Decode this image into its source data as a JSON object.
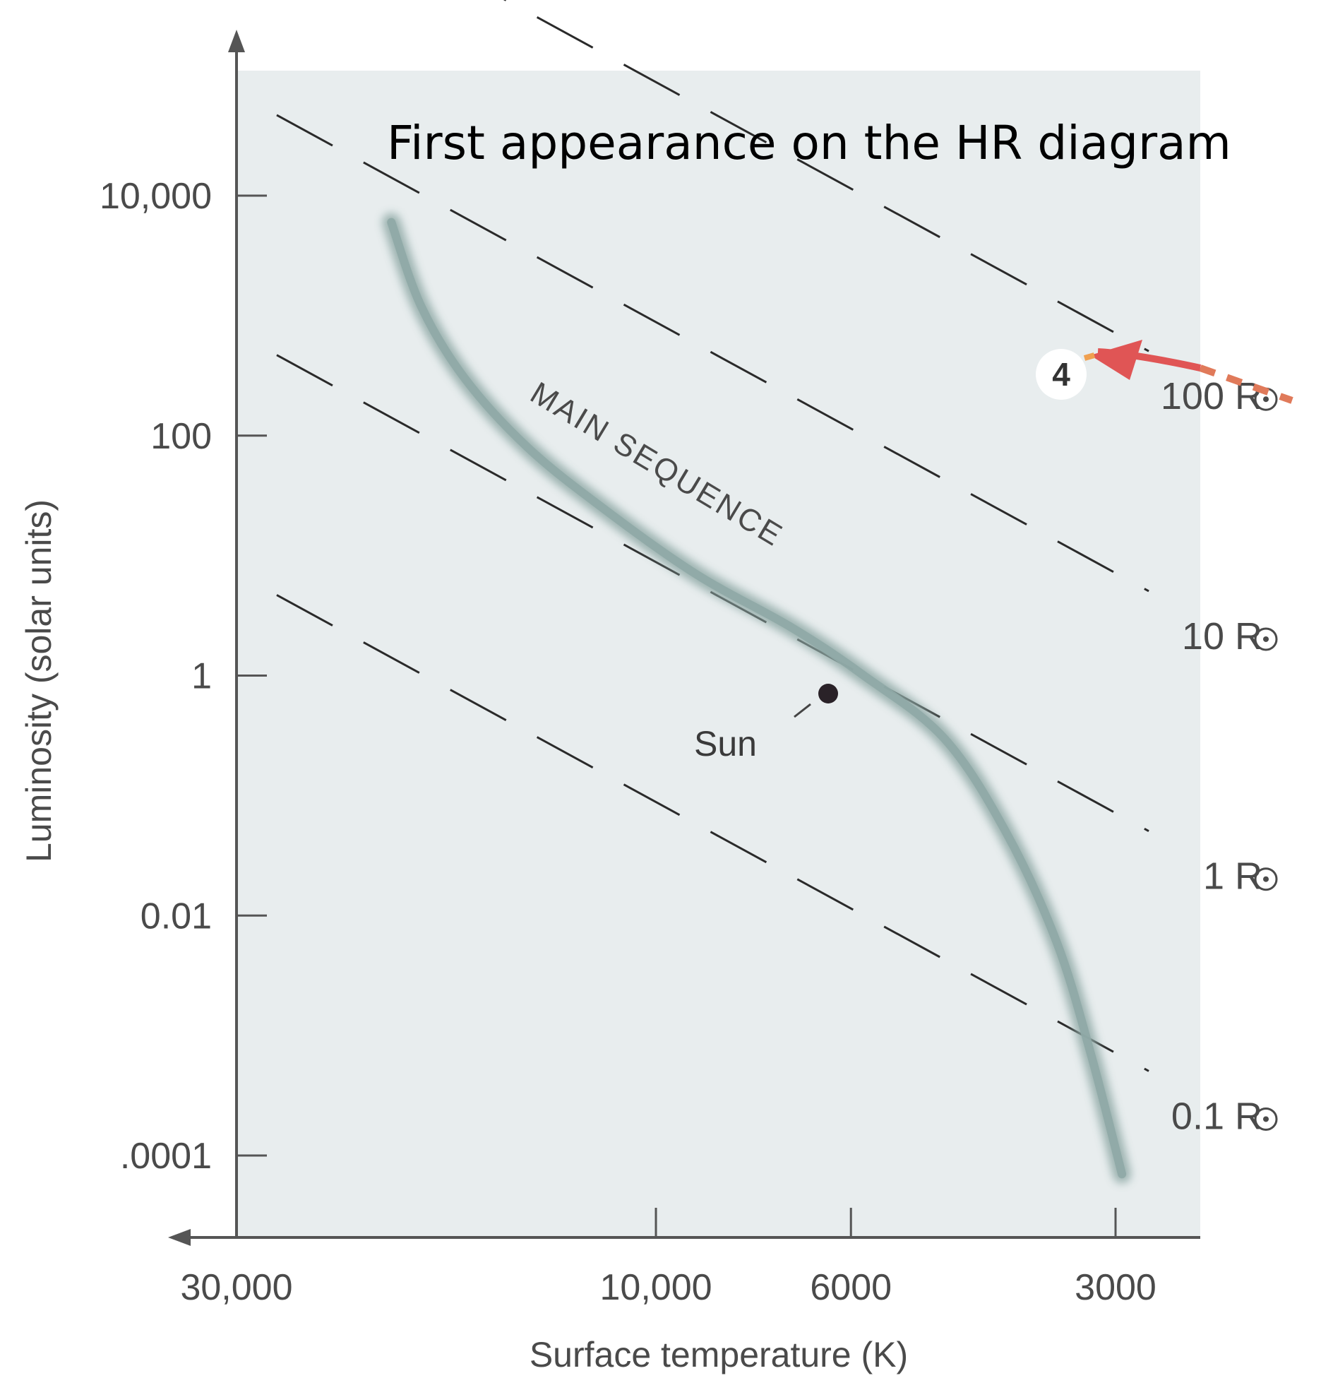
{
  "chart_data": {
    "type": "line",
    "title": "First appearance on the HR diagram",
    "xlabel": "Surface temperature (K)",
    "ylabel": "Luminosity (solar units)",
    "x_scale": "log",
    "x_reversed": true,
    "y_scale": "log",
    "xlim": [
      30000,
      2900
    ],
    "ylim": [
      3e-05,
      100000
    ],
    "x_ticks": [
      30000,
      10000,
      6000,
      3000
    ],
    "x_tick_labels": [
      "30,000",
      "10,000",
      "6000",
      "3000"
    ],
    "y_ticks": [
      10000,
      100,
      1,
      0.01,
      0.0001
    ],
    "y_tick_labels": [
      "10,000",
      "100",
      "1",
      "0.01",
      ".0001"
    ],
    "main_sequence": {
      "label": "MAIN SEQUENCE",
      "points": [
        [
          20000,
          6000
        ],
        [
          18500,
          1200
        ],
        [
          16500,
          300
        ],
        [
          14000,
          80
        ],
        [
          11500,
          25
        ],
        [
          9000,
          7
        ],
        [
          7000,
          2.5
        ],
        [
          5800,
          1
        ],
        [
          4700,
          0.3
        ],
        [
          4000,
          0.05
        ],
        [
          3500,
          0.006
        ],
        [
          3200,
          0.0007
        ],
        [
          2950,
          7e-05
        ]
      ]
    },
    "constant_radius_lines": [
      {
        "label": "100 R",
        "radius": 100
      },
      {
        "label": "10 R",
        "radius": 10
      },
      {
        "label": "1 R",
        "radius": 1
      },
      {
        "label": "0.1 R",
        "radius": 0.1
      }
    ],
    "sun": {
      "label": "Sun",
      "temperature": 5800,
      "luminosity": 1
    },
    "stage_marker": {
      "label": "4",
      "temperature": 3200,
      "luminosity": 400
    },
    "colors": {
      "plot_background": "#e8edee",
      "main_sequence": "#8fa9a6",
      "dashed_lines": "#2a2a2a",
      "arrow": "#e05555",
      "arrow_tail": "#e07a5a",
      "axis": "#555555",
      "sun": "#2a2228"
    }
  }
}
